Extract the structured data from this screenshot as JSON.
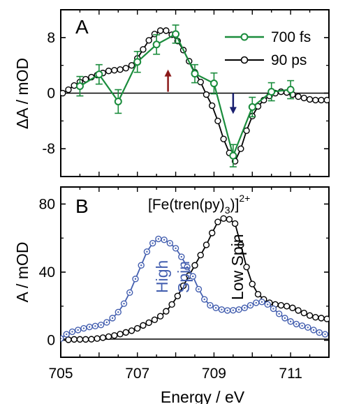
{
  "chart_data": [
    {
      "type": "line",
      "panel_label": "A",
      "xlim": [
        705,
        712
      ],
      "ylim": [
        -12,
        12
      ],
      "ylabel": "ΔA / mOD",
      "xlabel": "",
      "yticks": [
        8,
        0,
        -8
      ],
      "grid": false,
      "legend_position": "top-right",
      "zero_line": true,
      "series": [
        {
          "name": "700 fs",
          "color": "#1a8c3c",
          "marker": "open-circle",
          "error_bars": true,
          "x": [
            705.5,
            706.0,
            706.5,
            707.0,
            707.5,
            708.0,
            708.5,
            709.0,
            709.5,
            710.0,
            710.5,
            711.0
          ],
          "y": [
            1.0,
            2.7,
            -1.2,
            4.5,
            7.0,
            8.5,
            2.8,
            1.4,
            -9.0,
            -2.0,
            0.2,
            0.5
          ],
          "err": [
            1.4,
            1.4,
            1.7,
            1.5,
            1.4,
            1.3,
            1.3,
            1.5,
            1.6,
            1.4,
            1.3,
            1.3
          ]
        },
        {
          "name": "90 ps",
          "color": "#000000",
          "marker": "open-circle",
          "error_bars": false,
          "x": [
            705.05,
            705.2,
            705.35,
            705.5,
            705.65,
            705.8,
            705.95,
            706.1,
            706.25,
            706.4,
            706.55,
            706.7,
            706.85,
            707.0,
            707.15,
            707.3,
            707.45,
            707.6,
            707.75,
            707.9,
            708.05,
            708.2,
            708.35,
            708.5,
            708.65,
            708.8,
            708.95,
            709.1,
            709.25,
            709.4,
            709.55,
            709.7,
            709.85,
            710.0,
            710.15,
            710.3,
            710.45,
            710.6,
            710.75,
            710.9,
            711.05,
            711.2,
            711.35,
            711.5,
            711.65,
            711.8,
            711.95
          ],
          "y": [
            0.0,
            0.5,
            1.1,
            1.6,
            2.0,
            2.3,
            2.6,
            2.9,
            3.2,
            3.3,
            3.4,
            3.6,
            4.0,
            5.0,
            6.3,
            7.6,
            8.5,
            9.0,
            9.0,
            8.4,
            7.5,
            6.2,
            4.6,
            3.0,
            1.6,
            -0.2,
            -1.8,
            -4.0,
            -6.6,
            -8.6,
            -9.8,
            -8.0,
            -5.4,
            -3.3,
            -1.9,
            -1.0,
            -0.4,
            0.0,
            0.2,
            0.1,
            -0.2,
            -0.5,
            -0.7,
            -0.9,
            -1.0,
            -1.0,
            -1.0
          ]
        }
      ],
      "arrows": [
        {
          "x": 707.8,
          "y_from": 0.2,
          "y_to": 3.4,
          "direction": "up",
          "color": "#8b1a1a"
        },
        {
          "x": 709.5,
          "y_from": 0.0,
          "y_to": -3.0,
          "direction": "down",
          "color": "#1a2070"
        }
      ]
    },
    {
      "type": "line",
      "panel_label": "B",
      "xlim": [
        705,
        712
      ],
      "ylim": [
        -10,
        90
      ],
      "ylabel": "A / mOD",
      "xlabel": "Energy / eV",
      "xticks": [
        705,
        707,
        709,
        711
      ],
      "yticks": [
        80,
        40,
        0
      ],
      "grid": false,
      "zero_line": true,
      "annotations": {
        "compound": "[Fe(tren(py)",
        "compound_subscript": "3",
        "compound_close": ")]",
        "compound_superscript": "2+",
        "high_spin_line1": "High",
        "high_spin_line2": "Spin",
        "low_spin": "Low Spin"
      },
      "series": [
        {
          "name": "High Spin",
          "color": "#4560b0",
          "marker": "dotted-circle",
          "x": [
            705.0,
            705.15,
            705.3,
            705.45,
            705.6,
            705.75,
            705.9,
            706.05,
            706.2,
            706.35,
            706.5,
            706.65,
            706.8,
            706.95,
            707.1,
            707.25,
            707.4,
            707.55,
            707.7,
            707.85,
            708.0,
            708.15,
            708.3,
            708.45,
            708.6,
            708.75,
            708.9,
            709.05,
            709.2,
            709.35,
            709.5,
            709.65,
            709.8,
            709.95,
            710.1,
            710.25,
            710.4,
            710.55,
            710.7,
            710.85,
            711.0,
            711.15,
            711.3,
            711.45,
            711.6,
            711.75,
            711.9
          ],
          "y": [
            1.0,
            3.5,
            5.0,
            6.0,
            7.0,
            7.8,
            8.3,
            9.0,
            10.5,
            13.0,
            16.5,
            21.5,
            28.0,
            36.0,
            44.0,
            52.0,
            57.0,
            59.5,
            59.0,
            57.0,
            54.0,
            49.0,
            43.0,
            37.5,
            30.0,
            24.0,
            20.5,
            19.0,
            18.0,
            17.5,
            17.6,
            18.0,
            19.0,
            20.5,
            22.0,
            22.5,
            21.0,
            18.5,
            15.5,
            13.0,
            11.0,
            9.5,
            8.5,
            7.5,
            6.0,
            4.5,
            3.5
          ]
        },
        {
          "name": "Low Spin",
          "color": "#000000",
          "marker": "open-circle",
          "x": [
            705.2,
            705.35,
            705.5,
            705.65,
            705.8,
            705.95,
            706.1,
            706.25,
            706.4,
            706.55,
            706.7,
            706.85,
            707.0,
            707.15,
            707.3,
            707.45,
            707.6,
            707.75,
            707.9,
            708.05,
            708.2,
            708.35,
            708.5,
            708.65,
            708.8,
            708.95,
            709.1,
            709.25,
            709.4,
            709.55,
            709.7,
            709.85,
            710.0,
            710.15,
            710.3,
            710.45,
            710.6,
            710.75,
            710.9,
            711.05,
            711.2,
            711.35,
            711.5,
            711.65,
            711.8,
            711.95
          ],
          "y": [
            0.3,
            0.5,
            0.5,
            0.5,
            0.6,
            1.0,
            1.5,
            2.1,
            2.8,
            3.6,
            4.6,
            5.6,
            7.0,
            8.7,
            10.3,
            12.0,
            14.1,
            17.0,
            21.0,
            26.0,
            32.0,
            38.0,
            44.0,
            50.0,
            56.0,
            63.0,
            69.5,
            71.5,
            71.0,
            68.5,
            56.0,
            43.0,
            33.0,
            27.0,
            24.0,
            22.0,
            21.0,
            20.5,
            20.0,
            19.0,
            17.5,
            16.0,
            14.5,
            13.5,
            13.0,
            12.5
          ]
        }
      ]
    }
  ]
}
